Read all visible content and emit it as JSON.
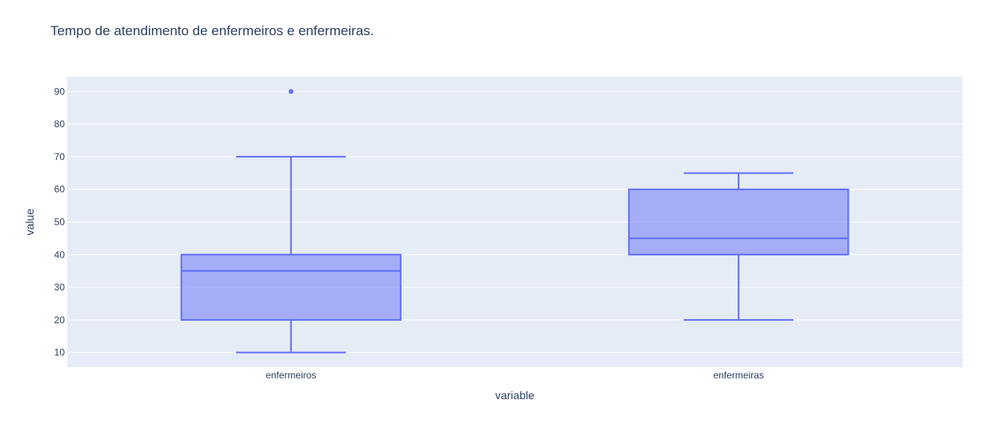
{
  "chart_data": {
    "type": "box",
    "title": "Tempo de atendimento de enfermeiros e enfermeiras.",
    "xlabel": "variable",
    "ylabel": "value",
    "ylim": [
      5.5,
      94.5
    ],
    "yticks": [
      10,
      20,
      30,
      40,
      50,
      60,
      70,
      80,
      90
    ],
    "categories": [
      "enfermeiros",
      "enfermeiras"
    ],
    "series": [
      {
        "category": "enfermeiros",
        "min": 10,
        "q1": 20,
        "median": 35,
        "q3": 40,
        "max": 70,
        "outliers": [
          90
        ]
      },
      {
        "category": "enfermeiras",
        "min": 20,
        "q1": 40,
        "median": 45,
        "q3": 60,
        "max": 65,
        "outliers": []
      }
    ],
    "grid": true,
    "colors": {
      "plot_bg": "#e5ecf6",
      "grid": "#ffffff",
      "box_line": "#636efa",
      "box_fill": "rgba(99,110,250,0.5)",
      "text": "#2a3f5f"
    }
  }
}
